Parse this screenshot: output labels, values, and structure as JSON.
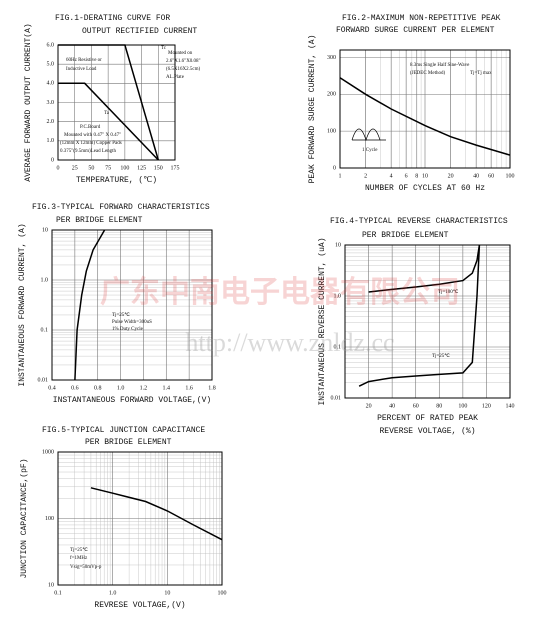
{
  "chart_data": [
    {
      "type": "line",
      "title": "FIG.1-DERATING CURVE FOR",
      "subtitle": "OUTPUT RECTIFIED CURRENT",
      "x_label": "TEMPERATURE, (℃)",
      "y_label": "AVERAGE FORWARD OUTPUT CURRENT(A)",
      "xlim": [
        0,
        175
      ],
      "xticks": [
        0,
        25,
        50,
        75,
        100,
        125,
        150,
        175
      ],
      "ylim": [
        0,
        6
      ],
      "yticks": [
        0,
        {
          "value": 1,
          "label": "1.0"
        },
        {
          "value": 2,
          "label": "2.0"
        },
        {
          "value": 3,
          "label": "3.0"
        },
        {
          "value": 4,
          "label": "4.0"
        },
        {
          "value": 5,
          "label": "5.0"
        },
        {
          "value": 6,
          "label": "6.0"
        }
      ],
      "grid": true,
      "series": [
        {
          "name": "Tc",
          "color": "#000000",
          "x": [
            0,
            100,
            150
          ],
          "values": [
            6,
            6,
            0
          ]
        },
        {
          "name": "Ta",
          "color": "#000000",
          "x": [
            0,
            40,
            150
          ],
          "values": [
            4,
            4,
            0
          ]
        }
      ],
      "annotations": [
        "60Hz Resistive or",
        "Inductive Load",
        "Mounted on",
        "2.6\"X1.6\"X0.08\"",
        "(6.5X16X2.5cm)",
        "AL.Plate",
        "P.C.Board",
        "Mounted with 0.47\" X 0.47\"",
        "(12mm X 12mm) Copper Pads",
        "0.375\"(9.5mm)Lead Length"
      ]
    },
    {
      "type": "line",
      "title": "FIG.2-MAXIMUM NON-REPETITIVE PEAK",
      "subtitle": "FORWARD SURGE CURRENT PER ELEMENT",
      "x_label": "NUMBER OF CYCLES AT 60 Hz",
      "y_label": "PEAK FORWARD SURGE CURRENT, (A)",
      "xlog": true,
      "xlim": [
        1,
        100
      ],
      "xticks": [
        1,
        2,
        4,
        6,
        8,
        10,
        20,
        40,
        60,
        100
      ],
      "ylim": [
        0,
        320
      ],
      "yticks": [
        0,
        100,
        200,
        300
      ],
      "grid": true,
      "series": [
        {
          "name": null,
          "color": "#000000",
          "x": [
            1,
            2,
            4,
            10,
            20,
            40,
            100
          ],
          "values": [
            245,
            200,
            160,
            115,
            85,
            62,
            35
          ]
        }
      ],
      "annotations": [
        "8.3ms Single Half Sine-Wave",
        "(JEDEC Method)",
        "Tj=Tj max",
        "1 Cycle"
      ]
    },
    {
      "type": "line",
      "title": "FIG.3-TYPICAL FORWARD CHARACTERISTICS",
      "subtitle": "PER BRIDGE ELEMENT",
      "x_label": "INSTANTANEOUS FORWARD VOLTAGE,(V)",
      "y_label": "INSTANTANEOUS FORWARD CURRENT, (A)",
      "xlim": [
        0.4,
        1.8
      ],
      "xticks": [
        0.4,
        0.6,
        0.8,
        {
          "value": 1,
          "label": "1.0"
        },
        1.2,
        1.4,
        1.6,
        1.8
      ],
      "ylog": true,
      "ylim": [
        0.01,
        10
      ],
      "yticks": [
        0.01,
        0.1,
        {
          "value": 1,
          "label": "1.0"
        },
        10
      ],
      "grid": true,
      "series": [
        {
          "name": null,
          "color": "#000000",
          "x": [
            0.6,
            0.62,
            0.66,
            0.7,
            0.76,
            0.86
          ],
          "values": [
            0.01,
            0.1,
            0.5,
            1.5,
            4,
            10
          ]
        }
      ],
      "annotations": [
        "Tj=25℃",
        "Pulse Width=300uS",
        "1% Duty Cycle"
      ]
    },
    {
      "type": "line",
      "title": "FIG.4-TYPICAL REVERSE CHARACTERISTICS",
      "subtitle": "PER BRIDGE ELEMENT",
      "x_label": "PERCENT OF RATED PEAK",
      "x_label2": "REVERSE VOLTAGE, (%)",
      "y_label": "INSTANTANEOUS REVERSE CURRENT, (uA)",
      "xlim": [
        0,
        140
      ],
      "xticks": [
        20,
        40,
        60,
        80,
        100,
        120,
        140
      ],
      "ylog": true,
      "ylim": [
        0.01,
        10
      ],
      "yticks": [
        0.01,
        0.1,
        {
          "value": 1,
          "label": "1.0"
        },
        10
      ],
      "grid": true,
      "series": [
        {
          "name": "Tj=100℃",
          "color": "#000000",
          "x": [
            20,
            40,
            60,
            80,
            100,
            108,
            112,
            114
          ],
          "values": [
            1.2,
            1.35,
            1.5,
            1.7,
            2,
            2.8,
            5,
            10
          ]
        },
        {
          "name": "Tj=25℃",
          "color": "#000000",
          "x": [
            12,
            20,
            40,
            60,
            80,
            100,
            108,
            112,
            114
          ],
          "values": [
            0.017,
            0.021,
            0.025,
            0.027,
            0.029,
            0.031,
            0.05,
            1,
            10
          ]
        }
      ]
    },
    {
      "type": "line",
      "title": "FIG.5-TYPICAL JUNCTION CAPACITANCE",
      "subtitle": "PER BRIDGE ELEMENT",
      "x_label": "REVRESE VOLTAGE,(V)",
      "y_label": "JUNCTION CAPACITANCE,(pF)",
      "xlog": true,
      "xlim": [
        0.1,
        100
      ],
      "xticks": [
        0.1,
        {
          "value": 1,
          "label": "1.0"
        },
        10,
        100
      ],
      "ylog": true,
      "ylim": [
        10,
        1000
      ],
      "yticks": [
        10,
        100,
        1000
      ],
      "grid": true,
      "series": [
        {
          "name": null,
          "color": "#000000",
          "x": [
            0.4,
            1,
            4,
            10,
            30,
            100
          ],
          "values": [
            290,
            240,
            180,
            130,
            80,
            48
          ]
        }
      ],
      "annotations": [
        "Tj=25℃",
        "f=1MHz",
        "Vsig=50mVp-p"
      ]
    }
  ],
  "watermark": {
    "company": "广东中南电子电器有限公司",
    "url": "http://www.znldz.cc"
  }
}
